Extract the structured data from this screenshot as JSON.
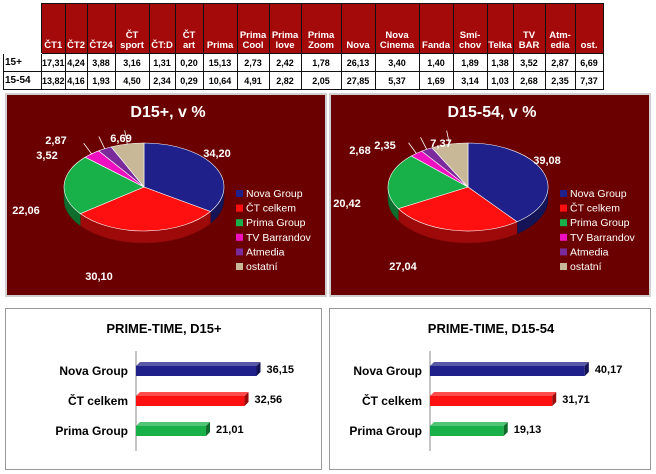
{
  "table": {
    "columns": [
      "ČT1",
      "ČT2",
      "ČT24",
      "ČT sport",
      "ČT:D",
      "ČT art",
      "Prima",
      "Prima Cool",
      "Prima love",
      "Prima Zoom",
      "Nova",
      "Nova Cinema",
      "Fanda",
      "Smí-chov",
      "Telka",
      "TV BAR",
      "Atm-edia",
      "ost."
    ],
    "rows": [
      {
        "label": "15+",
        "values": [
          "17,31",
          "4,24",
          "3,88",
          "3,16",
          "1,31",
          "0,20",
          "15,13",
          "2,73",
          "2,42",
          "1,78",
          "26,13",
          "3,40",
          "1,40",
          "1,89",
          "1,38",
          "3,52",
          "2,87",
          "6,69"
        ]
      },
      {
        "label": "15-54",
        "values": [
          "13,82",
          "4,16",
          "1,93",
          "4,50",
          "2,34",
          "0,29",
          "10,64",
          "4,91",
          "2,82",
          "2,05",
          "27,85",
          "5,37",
          "1,69",
          "3,14",
          "1,03",
          "2,68",
          "2,35",
          "7,37"
        ]
      }
    ]
  },
  "colors": {
    "panel_bg": "#6b0000",
    "header_bg": "#a50a0a",
    "nova": "#20208a",
    "ct": "#ff1010",
    "prima": "#18b048",
    "barrandov": "#ee10c0",
    "atmedia": "#7a2a9a",
    "ostatni": "#c8b898"
  },
  "chart_data": [
    {
      "type": "pie",
      "title": "D15+, v %",
      "labels": [
        "Nova Group",
        "ČT celkem",
        "Prima Group",
        "TV Barrandov",
        "Atmedia",
        "ostatní"
      ],
      "values": [
        34.2,
        30.1,
        22.06,
        3.52,
        2.87,
        6.69
      ],
      "value_labels": [
        "34,20",
        "30,10",
        "22,06",
        "3,52",
        "2,87",
        "6,69"
      ],
      "legend": "right"
    },
    {
      "type": "pie",
      "title": "D15-54, v %",
      "labels": [
        "Nova Group",
        "ČT celkem",
        "Prima Group",
        "TV Barrandov",
        "Atmedia",
        "ostatní"
      ],
      "values": [
        39.08,
        27.04,
        20.42,
        2.68,
        2.35,
        7.37
      ],
      "value_labels": [
        "39,08",
        "27,04",
        "20,42",
        "2,68",
        "2,35",
        "7,37"
      ],
      "legend": "right"
    },
    {
      "type": "bar",
      "orientation": "horizontal",
      "title": "PRIME-TIME, D15+",
      "categories": [
        "Nova Group",
        "ČT celkem",
        "Prima Group"
      ],
      "values": [
        36.15,
        32.56,
        21.01
      ],
      "value_labels": [
        "36,15",
        "32,56",
        "21,01"
      ],
      "xlim": [
        0,
        45
      ]
    },
    {
      "type": "bar",
      "orientation": "horizontal",
      "title": "PRIME-TIME, D15-54",
      "categories": [
        "Nova Group",
        "ČT celkem",
        "Prima Group"
      ],
      "values": [
        40.17,
        31.71,
        19.13
      ],
      "value_labels": [
        "40,17",
        "31,71",
        "19,13"
      ],
      "xlim": [
        0,
        48
      ]
    }
  ]
}
